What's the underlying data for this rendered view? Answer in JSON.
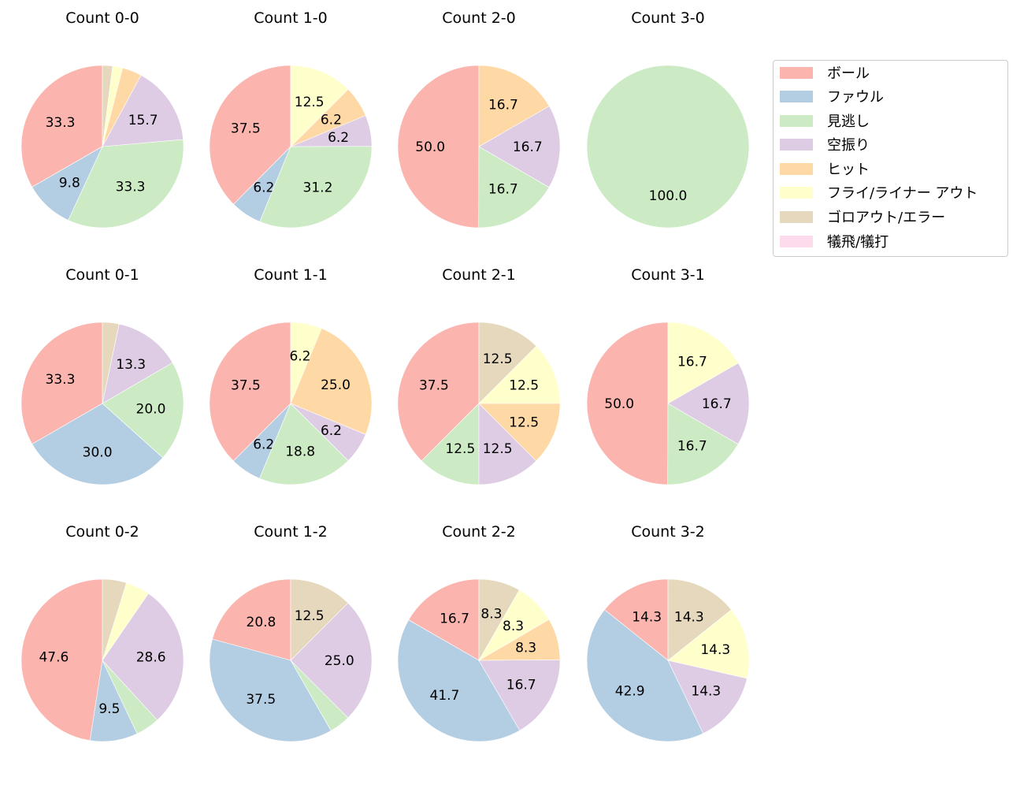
{
  "chart_data": {
    "type": "pie",
    "title": "",
    "categories": [
      "ボール",
      "ファウル",
      "見逃し",
      "空振り",
      "ヒット",
      "フライ/ライナー アウト",
      "ゴロアウト/エラー",
      "犠飛/犠打"
    ],
    "colors": [
      "#fbb4ae",
      "#b3cde3",
      "#ccebc5",
      "#decbe4",
      "#fed9a6",
      "#ffffcc",
      "#e5d8bd",
      "#fddaec"
    ],
    "legend_position": "right",
    "label_threshold_pct": 5,
    "charts": [
      {
        "title": "Count 0-0",
        "row": 0,
        "col": 0,
        "values": [
          33.3,
          9.8,
          33.3,
          15.7,
          3.9,
          2.0,
          2.0,
          0
        ]
      },
      {
        "title": "Count 1-0",
        "row": 0,
        "col": 1,
        "values": [
          37.5,
          6.2,
          31.2,
          6.2,
          6.2,
          12.5,
          0,
          0
        ]
      },
      {
        "title": "Count 2-0",
        "row": 0,
        "col": 2,
        "values": [
          50.0,
          0,
          16.7,
          16.7,
          16.7,
          0,
          0,
          0
        ]
      },
      {
        "title": "Count 3-0",
        "row": 0,
        "col": 3,
        "values": [
          0,
          0,
          100.0,
          0,
          0,
          0,
          0,
          0
        ]
      },
      {
        "title": "Count 0-1",
        "row": 1,
        "col": 0,
        "values": [
          33.3,
          30.0,
          20.0,
          13.3,
          0,
          0,
          3.3,
          0
        ]
      },
      {
        "title": "Count 1-1",
        "row": 1,
        "col": 1,
        "values": [
          37.5,
          6.2,
          18.8,
          6.2,
          25.0,
          6.2,
          0,
          0
        ]
      },
      {
        "title": "Count 2-1",
        "row": 1,
        "col": 2,
        "values": [
          37.5,
          0,
          12.5,
          12.5,
          12.5,
          12.5,
          12.5,
          0
        ]
      },
      {
        "title": "Count 3-1",
        "row": 1,
        "col": 3,
        "values": [
          50.0,
          0,
          16.7,
          16.7,
          0,
          16.7,
          0,
          0
        ]
      },
      {
        "title": "Count 0-2",
        "row": 2,
        "col": 0,
        "values": [
          47.6,
          9.5,
          4.8,
          28.6,
          0,
          4.8,
          4.8,
          0
        ]
      },
      {
        "title": "Count 1-2",
        "row": 2,
        "col": 1,
        "values": [
          20.8,
          37.5,
          4.2,
          25.0,
          0,
          0,
          12.5,
          0
        ]
      },
      {
        "title": "Count 2-2",
        "row": 2,
        "col": 2,
        "values": [
          16.7,
          41.7,
          0,
          16.7,
          8.3,
          8.3,
          8.3,
          0
        ]
      },
      {
        "title": "Count 3-2",
        "row": 2,
        "col": 3,
        "values": [
          14.3,
          42.9,
          0,
          14.3,
          0,
          14.3,
          14.3,
          0
        ]
      }
    ]
  },
  "legend": {
    "items": [
      {
        "label": "ボール",
        "color": "#fbb4ae"
      },
      {
        "label": "ファウル",
        "color": "#b3cde3"
      },
      {
        "label": "見逃し",
        "color": "#ccebc5"
      },
      {
        "label": "空振り",
        "color": "#decbe4"
      },
      {
        "label": "ヒット",
        "color": "#fed9a6"
      },
      {
        "label": "フライ/ライナー アウト",
        "color": "#ffffcc"
      },
      {
        "label": "ゴロアウト/エラー",
        "color": "#e5d8bd"
      },
      {
        "label": "犠飛/犠打",
        "color": "#fddaec"
      }
    ]
  }
}
